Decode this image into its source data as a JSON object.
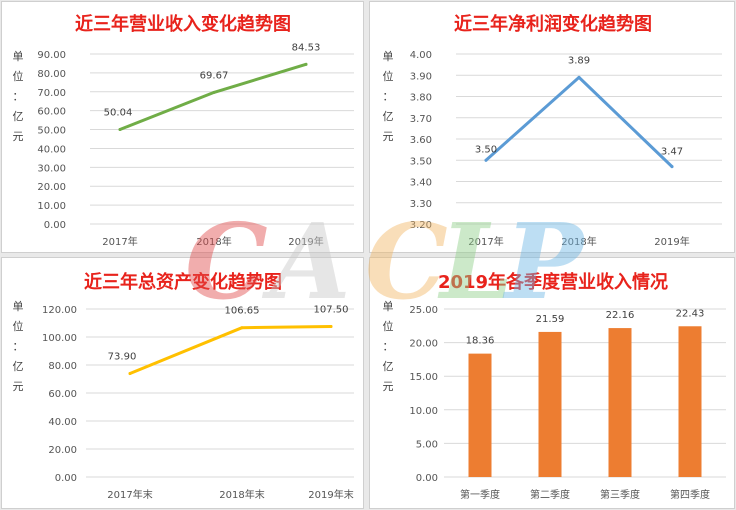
{
  "watermark": {
    "letters": [
      {
        "ch": "C",
        "color": "#e24b4b"
      },
      {
        "ch": "A",
        "color": "#c9c9c9"
      },
      {
        "ch": "C",
        "color": "#f2b766"
      },
      {
        "ch": "L",
        "color": "#8fd08a"
      },
      {
        "ch": "P",
        "color": "#6fb8e6"
      }
    ]
  },
  "chart_data": [
    {
      "id": "c1",
      "type": "line",
      "title": "近三年营业收入变化趋势图",
      "unit_label": [
        "单",
        "位",
        "：",
        "亿",
        "元"
      ],
      "categories": [
        "2017年",
        "2018年",
        "2019年"
      ],
      "values": [
        50.04,
        69.67,
        84.53
      ],
      "value_labels": [
        "50.04",
        "69.67",
        "84.53"
      ],
      "yticks": [
        "0.00",
        "10.00",
        "20.00",
        "30.00",
        "40.00",
        "50.00",
        "60.00",
        "70.00",
        "80.00",
        "90.00"
      ],
      "ylim": [
        0,
        90
      ],
      "color": "#70ad47",
      "grid": true
    },
    {
      "id": "c2",
      "type": "line",
      "title": "近三年净利润变化趋势图",
      "unit_label": [
        "单",
        "位",
        "：",
        "亿",
        "元"
      ],
      "categories": [
        "2017年",
        "2018年",
        "2019年"
      ],
      "values": [
        3.5,
        3.89,
        3.47
      ],
      "value_labels": [
        "3.50",
        "3.89",
        "3.47"
      ],
      "yticks": [
        "3.20",
        "3.30",
        "3.40",
        "3.50",
        "3.60",
        "3.70",
        "3.80",
        "3.90",
        "4.00"
      ],
      "ylim": [
        3.2,
        4.0
      ],
      "color": "#5b9bd5",
      "grid": true
    },
    {
      "id": "c3",
      "type": "line",
      "title": "近三年总资产变化趋势图",
      "unit_label": [
        "单",
        "位",
        "：",
        "亿",
        "元"
      ],
      "categories": [
        "2017年末",
        "2018年末",
        "2019年末"
      ],
      "values": [
        73.9,
        106.65,
        107.5
      ],
      "value_labels": [
        "73.90",
        "106.65",
        "107.50"
      ],
      "yticks": [
        "0.00",
        "20.00",
        "40.00",
        "60.00",
        "80.00",
        "100.00",
        "120.00"
      ],
      "ylim": [
        0,
        120
      ],
      "color": "#ffc000",
      "grid": true
    },
    {
      "id": "c4",
      "type": "bar",
      "title": "2019年各季度营业收入情况",
      "unit_label": [
        "单",
        "位",
        "：",
        "亿",
        "元"
      ],
      "categories": [
        "第一季度",
        "第二季度",
        "第三季度",
        "第四季度"
      ],
      "values": [
        18.36,
        21.59,
        22.16,
        22.43
      ],
      "value_labels": [
        "18.36",
        "21.59",
        "22.16",
        "22.43"
      ],
      "yticks": [
        "0.00",
        "5.00",
        "10.00",
        "15.00",
        "20.00",
        "25.00"
      ],
      "ylim": [
        0,
        25
      ],
      "color": "#ed7d31",
      "grid": true
    }
  ]
}
